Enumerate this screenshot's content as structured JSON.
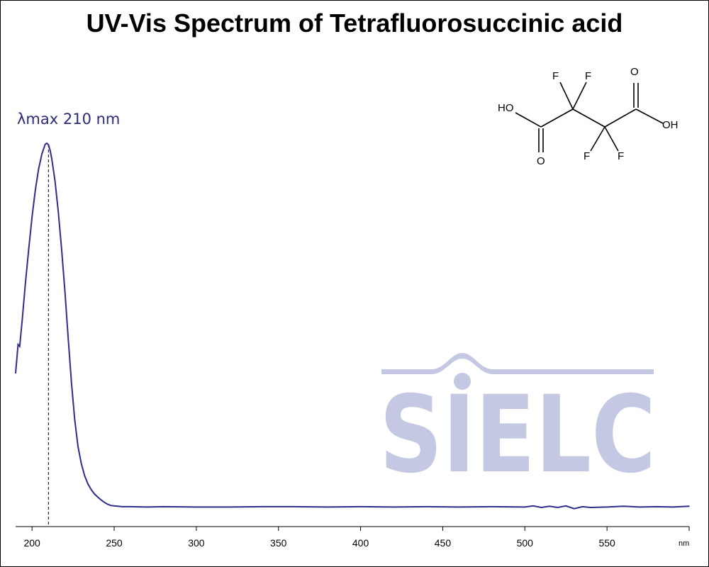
{
  "chart_data": {
    "type": "line",
    "title": "UV-Vis Spectrum of Tetrafluorosuccinic acid",
    "xlabel": "",
    "ylabel": "",
    "x_unit": "nm",
    "xlim": [
      190,
      600
    ],
    "ylim": [
      0,
      1
    ],
    "x_ticks": [
      200,
      250,
      300,
      350,
      400,
      450,
      500,
      550
    ],
    "grid": false,
    "annotation": {
      "text": "λmax  210 nm",
      "x": 210
    },
    "series": [
      {
        "name": "",
        "color": "#2e2e8a",
        "x": [
          190,
          191.5,
          192.5,
          194,
          196,
          198,
          200,
          202,
          204,
          206,
          208,
          209,
          210,
          211,
          212,
          214,
          216,
          218,
          220,
          222,
          224,
          226,
          228,
          230,
          232,
          234,
          236,
          238,
          240,
          242,
          244,
          246,
          248,
          250,
          255,
          260,
          270,
          280,
          300,
          320,
          340,
          360,
          380,
          400,
          420,
          440,
          460,
          480,
          500,
          505,
          510,
          515,
          520,
          525,
          530,
          535,
          540,
          550,
          560,
          570,
          580,
          590,
          600
        ],
        "y": [
          0.337,
          0.409,
          0.404,
          0.47,
          0.564,
          0.648,
          0.729,
          0.796,
          0.849,
          0.887,
          0.911,
          0.914,
          0.91,
          0.896,
          0.875,
          0.819,
          0.742,
          0.648,
          0.544,
          0.427,
          0.313,
          0.22,
          0.153,
          0.11,
          0.08,
          0.059,
          0.045,
          0.034,
          0.026,
          0.019,
          0.013,
          0.008,
          0.005,
          0.004,
          0.002,
          0.002,
          0.001,
          0.002,
          0.001,
          0.001,
          0.002,
          0.002,
          0.001,
          0.002,
          0.001,
          0.002,
          0.001,
          0.002,
          0.001,
          0.004,
          0.0,
          0.003,
          0.0,
          0.004,
          -0.003,
          0.002,
          0.0,
          0.001,
          0.003,
          0.001,
          0.002,
          0.001,
          0.003
        ]
      }
    ]
  },
  "molecule": {
    "atoms": [
      "HO",
      "O",
      "F",
      "F",
      "O",
      "OH",
      "F",
      "F"
    ]
  },
  "watermark": {
    "text": "SIELC"
  }
}
